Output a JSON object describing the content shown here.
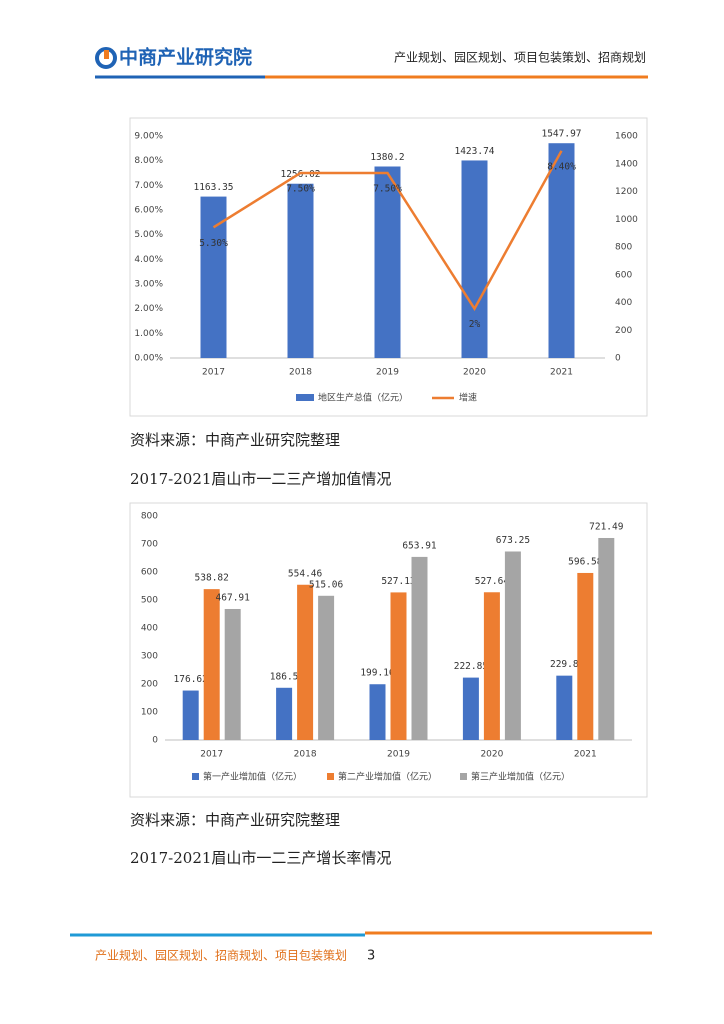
{
  "header": {
    "logo": "中商产业研究院",
    "tagline": "产业规划、园区规划、项目包装策划、招商规划"
  },
  "body": [
    "资料来源：中商产业研究院整理",
    "2017-2021眉山市一二三产增加值情况",
    "资料来源：中商产业研究院整理",
    "2017-2021眉山市一二三产增长率情况"
  ],
  "footer": {
    "text": "产业规划、园区规划、招商规划、项目包装策划",
    "page": "3"
  },
  "chart_data": [
    {
      "type": "combo",
      "categories": [
        "2017",
        "2018",
        "2019",
        "2020",
        "2021"
      ],
      "series": [
        {
          "name": "地区生产总值（亿元）",
          "type": "bar",
          "axis": "y2",
          "color": "#4472c4",
          "values": [
            1163.35,
            1256.02,
            1380.2,
            1423.74,
            1547.97
          ]
        },
        {
          "name": "增速",
          "type": "line",
          "color": "#ed7d31",
          "values": [
            5.3,
            7.5,
            7.5,
            2,
            8.4
          ],
          "value_labels": [
            "5.30%",
            "7.50%",
            "7.50%",
            "2%",
            "8.40%"
          ]
        }
      ],
      "ylim": [
        0,
        9
      ],
      "yticks": [
        {
          "value": 0,
          "label": "0.00%"
        },
        {
          "value": 1,
          "label": "1.00%"
        },
        {
          "value": 2,
          "label": "2.00%"
        },
        {
          "value": 3,
          "label": "3.00%"
        },
        {
          "value": 4,
          "label": "4.00%"
        },
        {
          "value": 5,
          "label": "5.00%"
        },
        {
          "value": 6,
          "label": "6.00%"
        },
        {
          "value": 7,
          "label": "7.00%"
        },
        {
          "value": 8,
          "label": "8.00%"
        },
        {
          "value": 9,
          "label": "9.00%"
        }
      ],
      "y2lim": [
        0,
        1600
      ],
      "y2ticks": [
        0,
        200,
        400,
        600,
        800,
        1000,
        1200,
        1400,
        1600
      ]
    },
    {
      "type": "bar",
      "categories": [
        "2017",
        "2018",
        "2019",
        "2020",
        "2021"
      ],
      "series": [
        {
          "name": "第一产业增加值（亿元）",
          "color": "#4472c4",
          "values": [
            176.62,
            186.5,
            199.16,
            222.85,
            229.8
          ]
        },
        {
          "name": "第二产业增加值（亿元）",
          "color": "#ed7d31",
          "values": [
            538.82,
            554.46,
            527.13,
            527.64,
            596.58
          ]
        },
        {
          "name": "第三产业增加值（亿元）",
          "color": "#a5a5a5",
          "values": [
            467.91,
            515.06,
            653.91,
            673.25,
            721.49
          ]
        }
      ],
      "ylim": [
        0,
        800
      ],
      "yticks": [
        0,
        100,
        200,
        300,
        400,
        500,
        600,
        700,
        800
      ]
    }
  ]
}
